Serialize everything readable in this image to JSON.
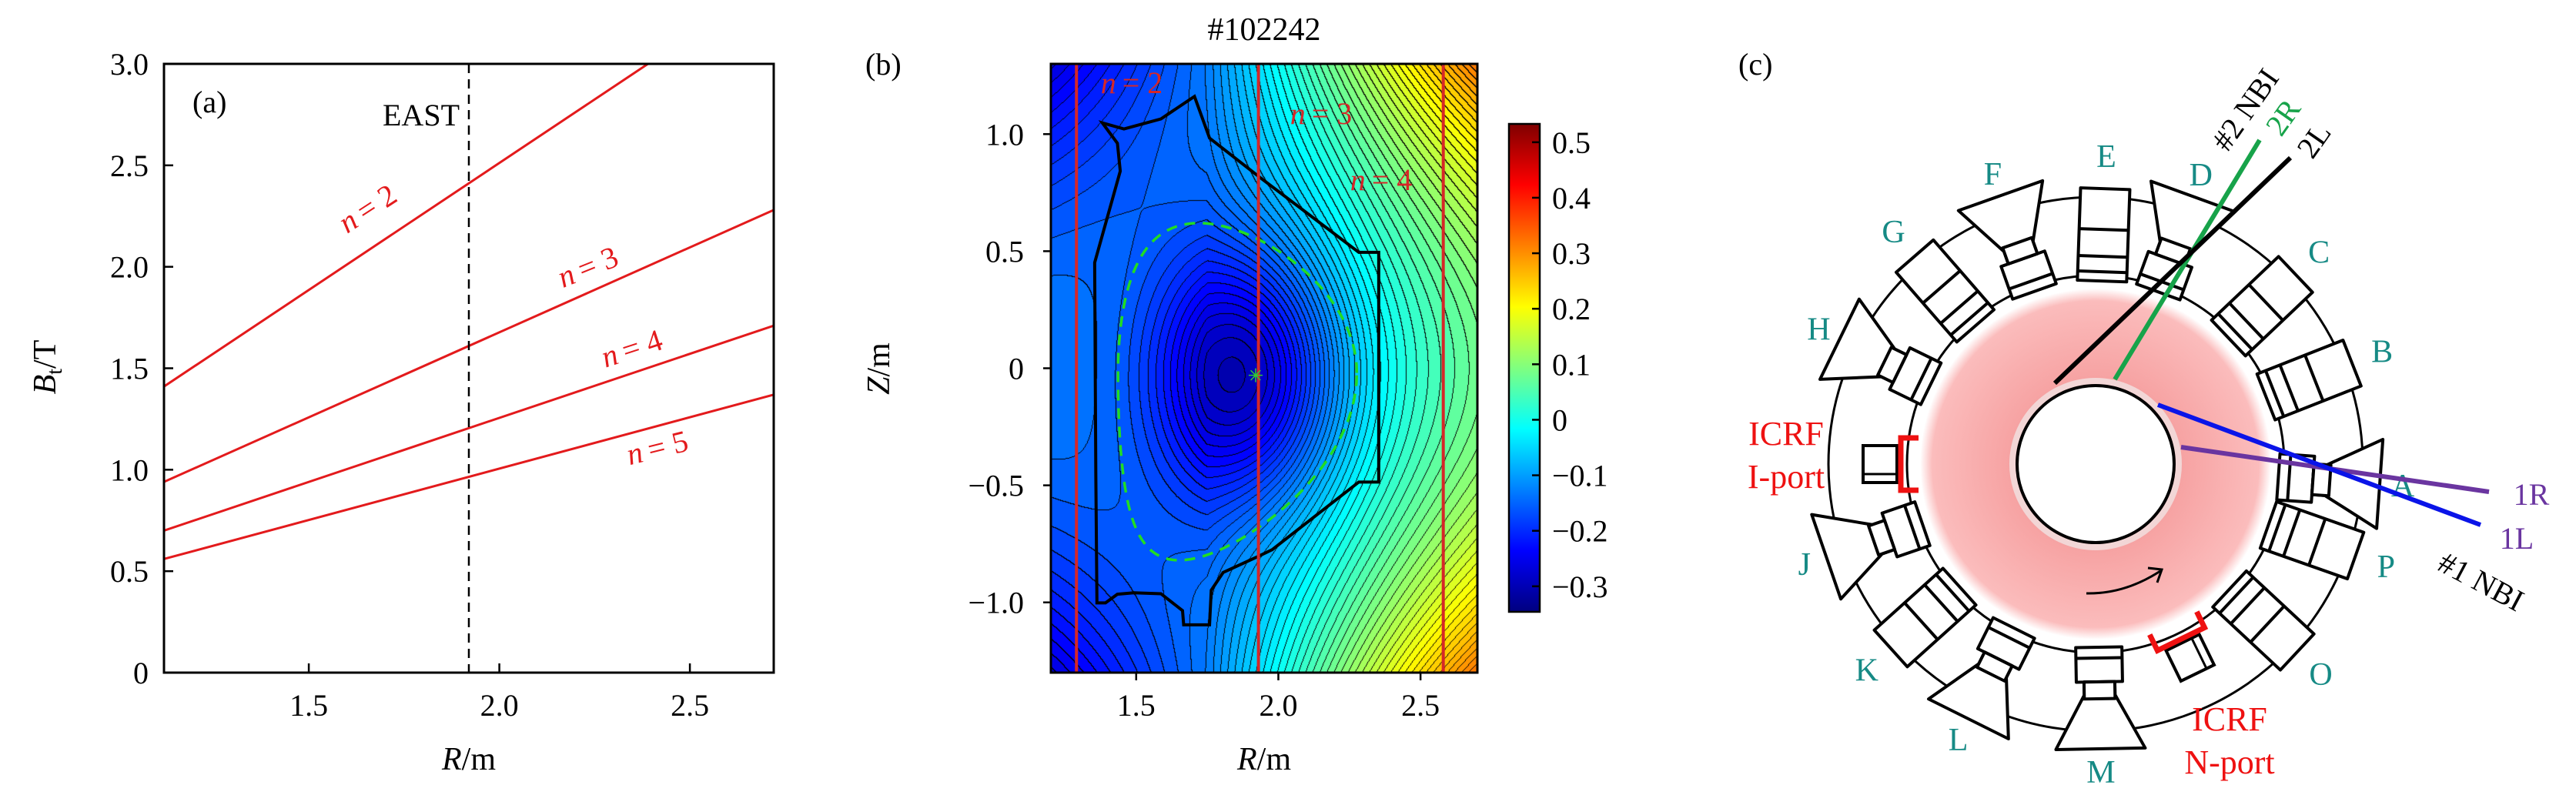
{
  "chart_data": [
    {
      "panel": "(a)",
      "type": "line",
      "annotation": "EAST",
      "reference_line_x": 1.92,
      "xlabel": {
        "var": "R",
        "unit": "/m"
      },
      "ylabel": {
        "var": "B",
        "sub": "t",
        "unit": "/T"
      },
      "xlim": [
        1.12,
        2.72
      ],
      "ylim": [
        0,
        3.0
      ],
      "xticks": [
        "1.5",
        "2.0",
        "2.5"
      ],
      "xtick_values": [
        1.5,
        2.0,
        2.5
      ],
      "yticks": [
        "0",
        "0.5",
        "1.0",
        "1.5",
        "2.0",
        "2.5",
        "3.0"
      ],
      "ytick_values": [
        0,
        0.5,
        1.0,
        1.5,
        2.0,
        2.5,
        3.0
      ],
      "color": "#e31a1c",
      "series": [
        {
          "label": {
            "var": "n",
            "rest": "= 2"
          },
          "x": [
            1.12,
            2.39
          ],
          "y": [
            1.41,
            3.0
          ]
        },
        {
          "label": {
            "var": "n",
            "rest": "= 3"
          },
          "x": [
            1.12,
            2.72
          ],
          "y": [
            0.94,
            2.28
          ]
        },
        {
          "label": {
            "var": "n",
            "rest": "= 4"
          },
          "x": [
            1.12,
            2.72
          ],
          "y": [
            0.7,
            1.71
          ]
        },
        {
          "label": {
            "var": "n",
            "rest": "= 5"
          },
          "x": [
            1.12,
            2.72
          ],
          "y": [
            0.56,
            1.37
          ]
        }
      ]
    },
    {
      "panel": "(b)",
      "type": "heatmap",
      "title": "#102242",
      "xlabel": {
        "var": "Z",
        "unit": "/m"
      },
      "xlabel_axis": {
        "var": "R",
        "unit": "/m"
      },
      "xlim": [
        1.2,
        2.7
      ],
      "ylim": [
        -1.3,
        1.3
      ],
      "xticks": [
        "1.5",
        "2.0",
        "2.5"
      ],
      "xtick_values": [
        1.5,
        2.0,
        2.5
      ],
      "yticks": [
        "−1.0",
        "−0.5",
        "0",
        "0.5",
        "1.0"
      ],
      "ytick_values": [
        -1.0,
        -0.5,
        0,
        0.5,
        1.0
      ],
      "colormap": "jet",
      "colorbar_range": [
        -0.346,
        0.533
      ],
      "colorbar_ticks": [
        "0.5",
        "0.4",
        "0.3",
        "0.2",
        "0.1",
        "0",
        "−0.1",
        "−0.2",
        "−0.3"
      ],
      "colorbar_tick_values": [
        0.5,
        0.4,
        0.3,
        0.2,
        0.1,
        0,
        -0.1,
        -0.2,
        -0.3
      ],
      "magnetic_axis": [
        1.92,
        -0.03
      ],
      "resonance_lines": [
        {
          "R": 1.29,
          "label": {
            "var": "n",
            "rest": "= 2"
          }
        },
        {
          "R": 1.93,
          "label": {
            "var": "n",
            "rest": "= 3"
          }
        },
        {
          "R": 2.58,
          "label": {
            "var": "n",
            "rest": "= 4"
          }
        }
      ],
      "resonance_color": "#d62728",
      "lcfs_color": "#22dd22",
      "wall": [
        [
          1.381,
          1.048
        ],
        [
          1.457,
          1.022
        ],
        [
          1.587,
          1.065
        ],
        [
          1.705,
          1.161
        ],
        [
          1.758,
          0.983
        ],
        [
          1.93,
          0.82
        ],
        [
          2.283,
          0.495
        ],
        [
          2.353,
          0.495
        ],
        [
          2.353,
          -0.486
        ],
        [
          2.283,
          -0.486
        ],
        [
          1.978,
          -0.775
        ],
        [
          1.93,
          -0.803
        ],
        [
          1.806,
          -0.872
        ],
        [
          1.764,
          -0.948
        ],
        [
          1.758,
          -1.096
        ],
        [
          1.667,
          -1.096
        ],
        [
          1.663,
          -1.035
        ],
        [
          1.587,
          -0.963
        ],
        [
          1.492,
          -0.959
        ],
        [
          1.434,
          -0.965
        ],
        [
          1.392,
          -1.002
        ],
        [
          1.362,
          -1.002
        ],
        [
          1.358,
          -0.449
        ],
        [
          1.354,
          0.451
        ],
        [
          1.444,
          0.842
        ],
        [
          1.434,
          0.961
        ]
      ]
    }
  ],
  "diagram": {
    "panel": "(c)",
    "port_color": "#168a85",
    "icrf_color": "#ee1111",
    "ports": [
      {
        "label": "A",
        "angle": -4,
        "shape": "trap"
      },
      {
        "label": "B",
        "angle": 21.5,
        "shape": "box"
      },
      {
        "label": "C",
        "angle": 43.5,
        "shape": "box"
      },
      {
        "label": "D",
        "angle": 70,
        "shape": "trap"
      },
      {
        "label": "E",
        "angle": 88,
        "shape": "box"
      },
      {
        "label": "F",
        "angle": 109.5,
        "shape": "trap"
      },
      {
        "label": "G",
        "angle": 131,
        "shape": "box"
      },
      {
        "label": "H",
        "angle": 154,
        "shape": "trap"
      },
      {
        "label": "J",
        "angle": 199,
        "shape": "trap"
      },
      {
        "label": "K",
        "angle": 222,
        "shape": "box"
      },
      {
        "label": "L",
        "angle": 243.5,
        "shape": "trap"
      },
      {
        "label": "M",
        "angle": 271,
        "shape": "trap"
      },
      {
        "label": "O",
        "angle": 317,
        "shape": "box"
      },
      {
        "label": "P",
        "angle": 340.6,
        "shape": "box"
      }
    ],
    "icrf_ports": [
      {
        "line1": "ICRF",
        "line2": "I-port",
        "angle": 180
      },
      {
        "line1": "ICRF",
        "line2": "N-port",
        "angle": 296
      }
    ],
    "nbi": {
      "beam2_label": "#2 NBI",
      "beam1_label": "#1 NBI",
      "lines": [
        {
          "label": "2R",
          "color": "#17a34a"
        },
        {
          "label": "2L",
          "color": "#000000"
        },
        {
          "label": "1R",
          "color": "#6a35a0"
        },
        {
          "label": "1L",
          "color": "#0a14e8"
        }
      ],
      "label_1L_color": "#6a35a0"
    }
  }
}
